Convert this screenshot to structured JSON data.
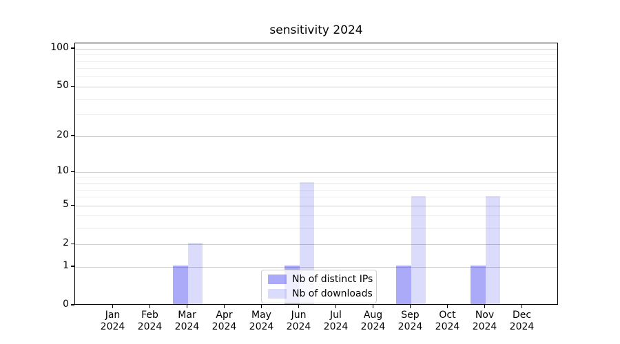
{
  "chart_data": {
    "type": "bar",
    "title": "sensitivity 2024",
    "categories": [
      "Jan",
      "Feb",
      "Mar",
      "Apr",
      "May",
      "Jun",
      "Jul",
      "Aug",
      "Sep",
      "Oct",
      "Nov",
      "Dec"
    ],
    "category_year": "2024",
    "series": [
      {
        "name": "Nb of distinct IPs",
        "color": "#a9a9f8",
        "rgba": "rgba(25,25,235,0.37)",
        "values": [
          0,
          0,
          1,
          0,
          0,
          1,
          0,
          0,
          1,
          0,
          1,
          0
        ]
      },
      {
        "name": "Nb of downloads",
        "color": "#dbdbf9",
        "rgba": "rgba(25,25,235,0.155)",
        "values": [
          0,
          0,
          2,
          0,
          0,
          8,
          0,
          0,
          6,
          0,
          6,
          0
        ]
      }
    ],
    "yscale": "log1p",
    "y_ticks": [
      0,
      1,
      2,
      5,
      10,
      20,
      50,
      100
    ],
    "y_minor_gridlines": [
      3,
      4,
      6,
      7,
      8,
      9,
      30,
      40,
      60,
      70,
      80,
      90
    ],
    "ylim": [
      0,
      111
    ],
    "grid": "on",
    "legend_position": "lower center",
    "colors": {
      "axis": "#000000",
      "major_grid": "#cccccc",
      "minor_grid": "#f0f0f0",
      "legend_border": "#cccccc"
    }
  }
}
